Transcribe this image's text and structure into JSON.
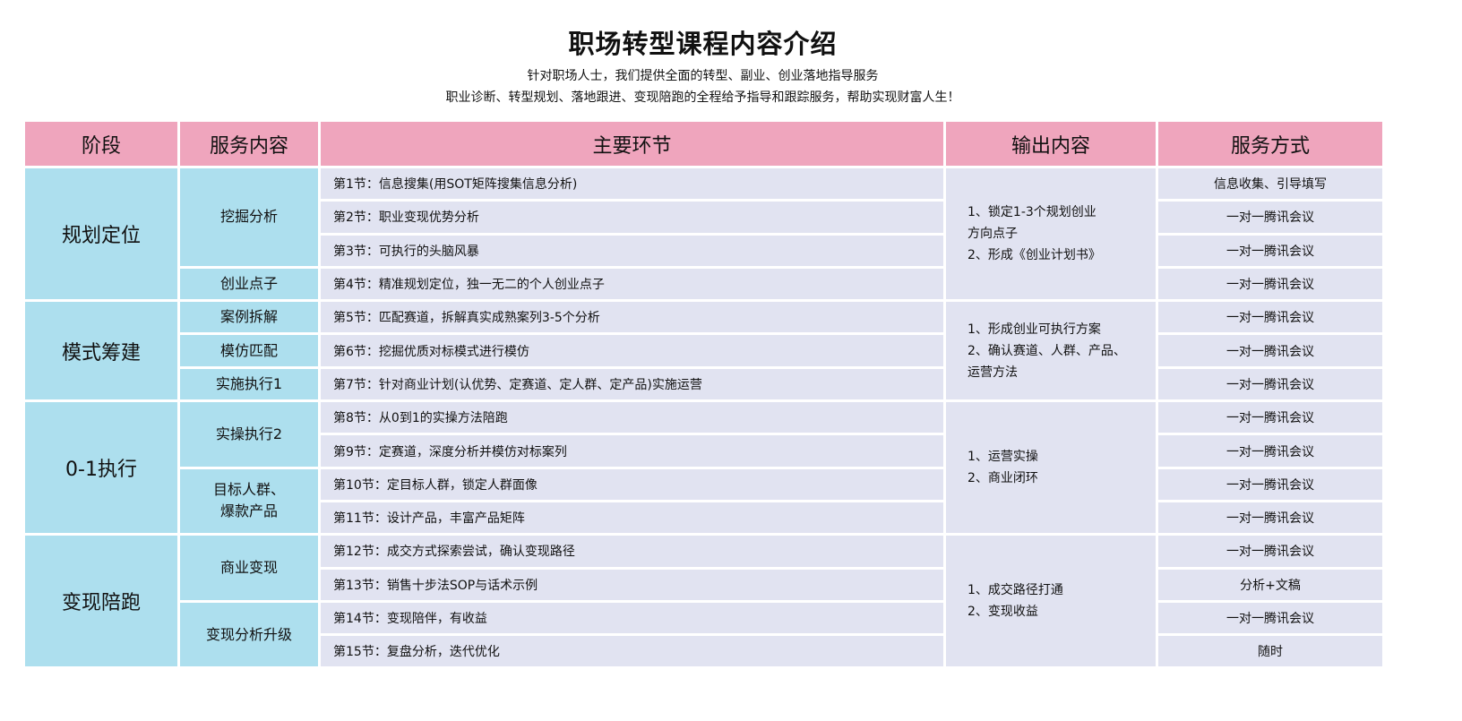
{
  "title": "职场转型课程内容介绍",
  "subtitle_lines": [
    "针对职场人士，我们提供全面的转型、副业、创业落地指导服务",
    "职业诊断、转型规划、落地跟进、变现陪跑的全程给予指导和跟踪服务，帮助实现财富人生！"
  ],
  "colors": {
    "header": "#EFA5BD",
    "stage": "#ADDFEE",
    "body": "#E1E3F1"
  },
  "headers": [
    "阶段",
    "服务内容",
    "主要环节",
    "输出内容",
    "服务方式"
  ],
  "stages": [
    {
      "label": "规划定位",
      "rows": [
        1,
        4
      ]
    },
    {
      "label": "模式筹建",
      "rows": [
        5,
        7
      ]
    },
    {
      "label": "0-1执行",
      "rows": [
        8,
        11
      ]
    },
    {
      "label": "变现陪跑",
      "rows": [
        12,
        15
      ]
    }
  ],
  "services": [
    {
      "label": "挖掘分析",
      "rows": [
        1,
        3
      ]
    },
    {
      "label": "创业点子",
      "rows": [
        4,
        4
      ]
    },
    {
      "label": "案例拆解",
      "rows": [
        5,
        5
      ]
    },
    {
      "label": "模仿匹配",
      "rows": [
        6,
        6
      ]
    },
    {
      "label": "实施执行1",
      "rows": [
        7,
        7
      ]
    },
    {
      "label": "实操执行2",
      "rows": [
        8,
        9
      ]
    },
    {
      "label": "目标人群、\n爆款产品",
      "rows": [
        10,
        11
      ]
    },
    {
      "label": "商业变现",
      "rows": [
        12,
        13
      ]
    },
    {
      "label": "变现分析升级",
      "rows": [
        14,
        15
      ]
    }
  ],
  "steps": [
    "第1节：信息搜集(用SOT矩阵搜集信息分析)",
    "第2节：职业变现优势分析",
    "第3节：可执行的头脑风暴",
    "第4节：精准规划定位，独一无二的个人创业点子",
    "第5节：匹配赛道，拆解真实成熟案列3-5个分析",
    "第6节：挖掘优质对标模式进行模仿",
    "第7节：针对商业计划(认优势、定赛道、定人群、定产品)实施运营",
    "第8节：从0到1的实操方法陪跑",
    "第9节：定赛道，深度分析并模仿对标案列",
    "第10节：定目标人群，锁定人群面像",
    "第11节：设计产品，丰富产品矩阵",
    "第12节：成交方式探索尝试，确认变现路径",
    "第13节：销售十步法SOP与话术示例",
    "第14节：变现陪伴，有收益",
    "第15节：复盘分析，迭代优化"
  ],
  "outputs": [
    {
      "label": "1、锁定1-3个规划创业\n方向点子\n2、形成《创业计划书》",
      "rows": [
        1,
        4
      ]
    },
    {
      "label": "1、形成创业可执行方案\n2、确认赛道、人群、产品、\n运营方法",
      "rows": [
        5,
        7
      ]
    },
    {
      "label": "1、运营实操\n2、商业闭环",
      "rows": [
        8,
        11
      ]
    },
    {
      "label": "1、成交路径打通\n2、变现收益",
      "rows": [
        12,
        15
      ]
    }
  ],
  "modes": [
    "信息收集、引导填写",
    "一对一腾讯会议",
    "一对一腾讯会议",
    "一对一腾讯会议",
    "一对一腾讯会议",
    "一对一腾讯会议",
    "一对一腾讯会议",
    "一对一腾讯会议",
    "一对一腾讯会议",
    "一对一腾讯会议",
    "一对一腾讯会议",
    "一对一腾讯会议",
    "分析+文稿",
    "一对一腾讯会议",
    "随时"
  ]
}
